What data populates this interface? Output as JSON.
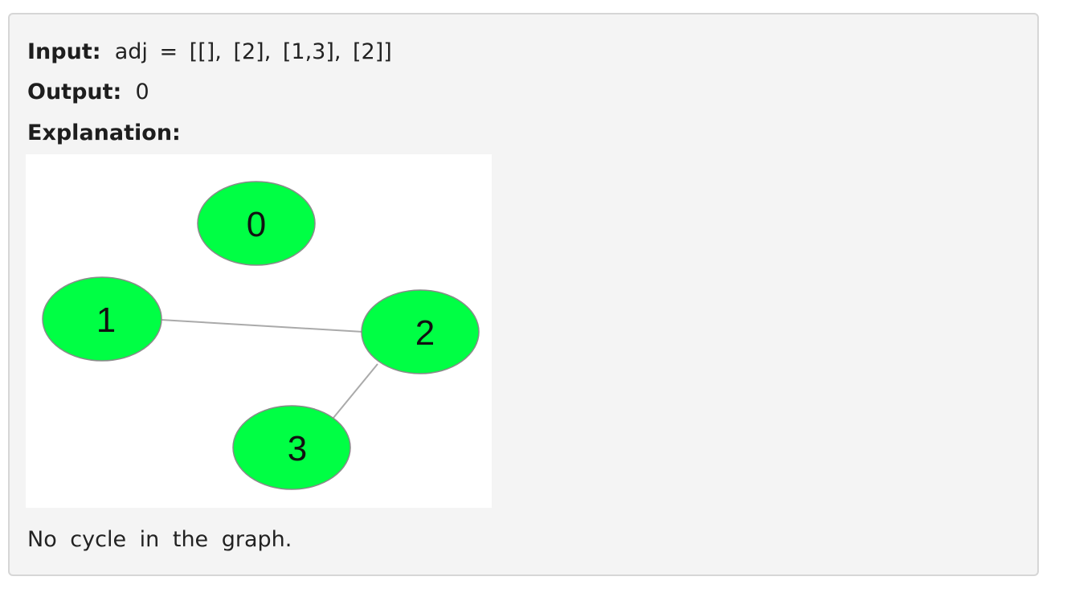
{
  "example": {
    "input_label": "Input:",
    "input_value": "adj = [[], [2], [1,3], [2]]",
    "output_label": "Output:",
    "output_value": "0",
    "explanation_label": "Explanation:",
    "note": "No cycle in the graph."
  },
  "graph": {
    "node_color": "#00ff44",
    "edge_color": "#aaaaaa",
    "nodes": [
      "0",
      "1",
      "2",
      "3"
    ],
    "edges": [
      [
        "1",
        "2"
      ],
      [
        "2",
        "3"
      ]
    ]
  }
}
